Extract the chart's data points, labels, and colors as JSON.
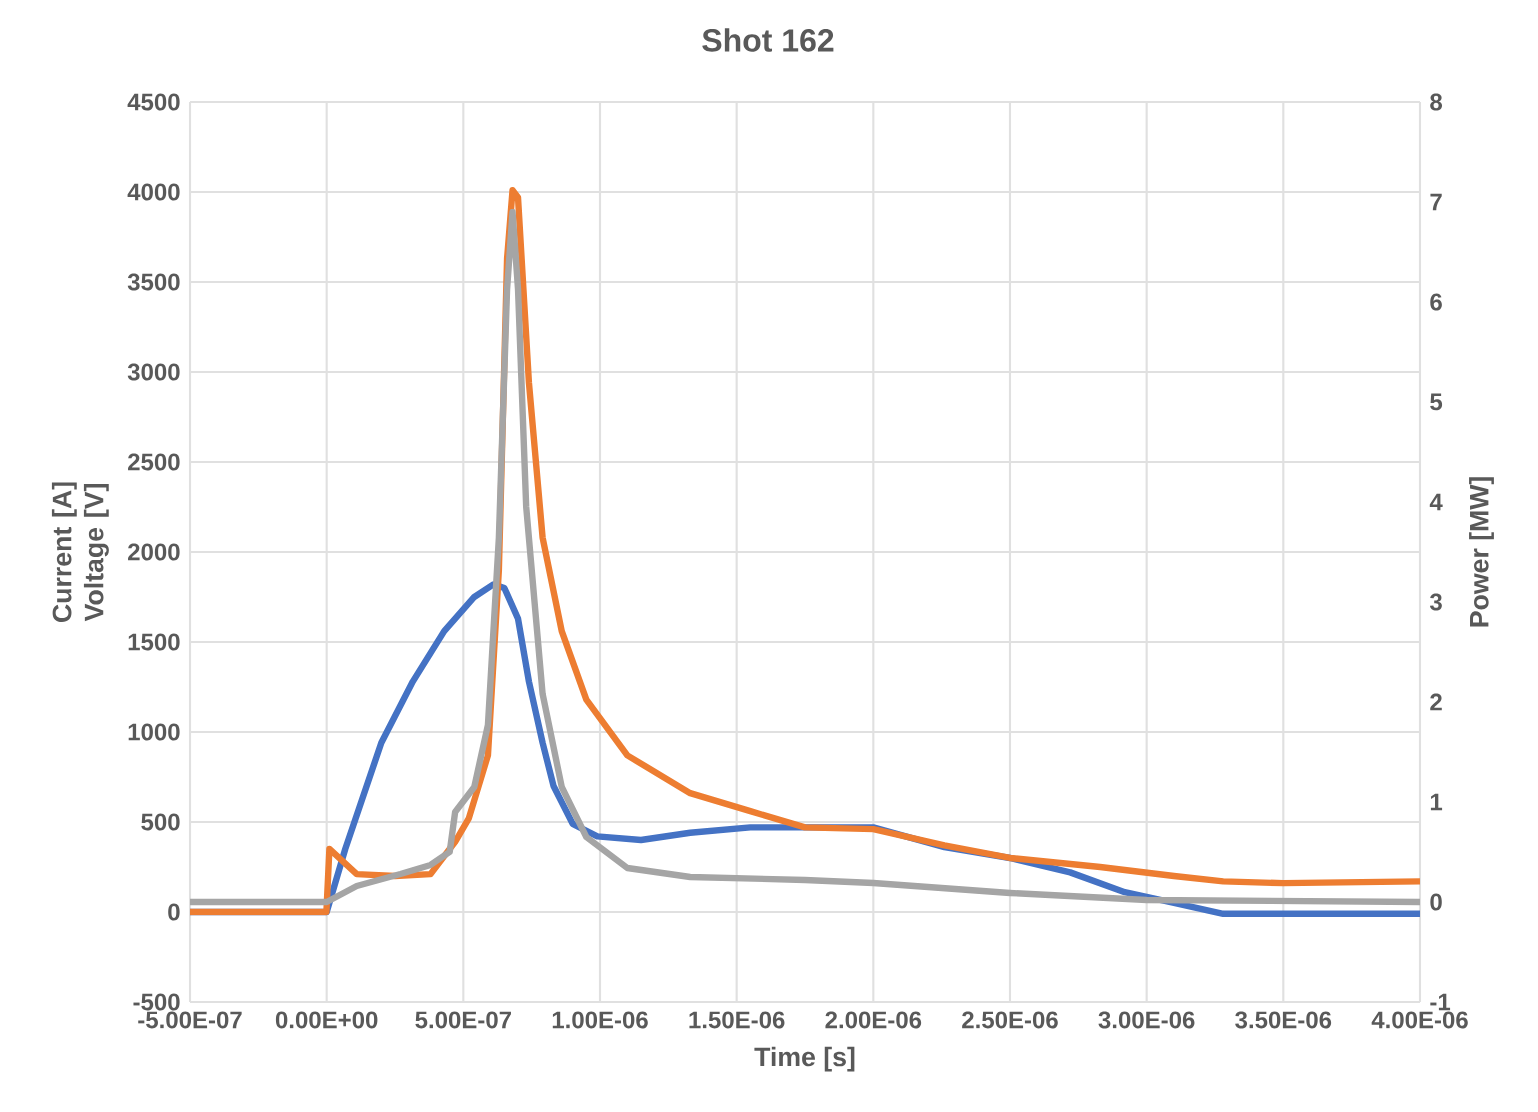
{
  "chart_data": {
    "type": "line",
    "title": "Shot 162",
    "xlabel": "Time [s]",
    "ylabel": "Current [A] Voltage [V]",
    "y2label": "Power [MW]",
    "x": [
      -5e-07,
      0,
      6.8e-08,
      2e-07,
      3.15e-07,
      4.3e-07,
      5.4e-07,
      6.1e-07,
      6.5e-07,
      7e-07,
      7.4e-07,
      7.9e-07,
      8.3e-07,
      9e-07,
      9.9e-07,
      1.15e-06,
      1.33e-06,
      1.55e-06,
      1.75e-06,
      2e-06,
      2.26e-06,
      2.5e-06,
      2.72e-06,
      2.92e-06,
      3.1e-06,
      3.28e-06,
      3.5e-06,
      4e-06
    ],
    "series": [
      {
        "color": "#4472c4",
        "values": [
          0,
          0,
          350,
          940,
          1280,
          1560,
          1750,
          1820,
          1800,
          1630,
          1280,
          940,
          700,
          490,
          420,
          400,
          440,
          470,
          470,
          470,
          360,
          300,
          220,
          110,
          50,
          -10,
          -10,
          -10
        ]
      },
      {
        "color": "#ed7d31",
        "x": [
          -5e-07,
          -1e-09,
          1e-08,
          1.1e-07,
          2.5e-07,
          3.8e-07,
          4.7e-07,
          5.2e-07,
          5.9e-07,
          6.3e-07,
          6.6e-07,
          6.8e-07,
          7e-07,
          7.4e-07,
          7.9e-07,
          8.6e-07,
          9.5e-07,
          1.1e-06,
          1.33e-06,
          1.55e-06,
          1.75e-06,
          2e-06,
          2.26e-06,
          2.5e-06,
          2.83e-06,
          3.1e-06,
          3.28e-06,
          3.5e-06,
          4e-06
        ],
        "values": [
          0,
          0,
          350,
          210,
          200,
          210,
          390,
          520,
          870,
          1900,
          3630,
          4010,
          3970,
          2940,
          2080,
          1560,
          1180,
          870,
          660,
          560,
          470,
          460,
          370,
          300,
          250,
          200,
          170,
          160,
          170
        ]
      },
      {
        "color": "#a5a5a5",
        "axis": "y2",
        "x": [
          -5e-07,
          0,
          1.1e-07,
          2.7e-07,
          3.8e-07,
          4.5e-07,
          4.7e-07,
          5.4e-07,
          5.9e-07,
          6.3e-07,
          6.6e-07,
          6.8e-07,
          7e-07,
          7.3e-07,
          7.9e-07,
          8.6e-07,
          9.5e-07,
          1.1e-06,
          1.33e-06,
          1.75e-06,
          2e-06,
          2.5e-06,
          3e-06,
          4e-06
        ],
        "values": [
          0,
          0,
          0.16,
          0.28,
          0.37,
          0.5,
          0.9,
          1.15,
          1.77,
          3.64,
          6.13,
          6.9,
          6.13,
          3.95,
          2.08,
          1.15,
          0.65,
          0.34,
          0.25,
          0.22,
          0.19,
          0.09,
          0.02,
          0
        ]
      }
    ],
    "xlim": [
      -5e-07,
      4e-06
    ],
    "xticks": [
      {
        "value": -5e-07,
        "label": "-5.00E-07"
      },
      {
        "value": 0,
        "label": "0.00E+00"
      },
      {
        "value": 5e-07,
        "label": "5.00E-07"
      },
      {
        "value": 1e-06,
        "label": "1.00E-06"
      },
      {
        "value": 1.5e-06,
        "label": "1.50E-06"
      },
      {
        "value": 2e-06,
        "label": "2.00E-06"
      },
      {
        "value": 2.5e-06,
        "label": "2.50E-06"
      },
      {
        "value": 3e-06,
        "label": "3.00E-06"
      },
      {
        "value": 3.5e-06,
        "label": "3.50E-06"
      },
      {
        "value": 4e-06,
        "label": "4.00E-06"
      }
    ],
    "ylim": [
      -500,
      4500
    ],
    "yticks": [
      -500,
      0,
      500,
      1000,
      1500,
      2000,
      2500,
      3000,
      3500,
      4000,
      4500
    ],
    "y2lim": [
      -1,
      8
    ],
    "y2ticks": [
      -1,
      0,
      1,
      2,
      3,
      4,
      5,
      6,
      7,
      8
    ],
    "grid": true,
    "marker": "none",
    "line_style": "solid"
  }
}
